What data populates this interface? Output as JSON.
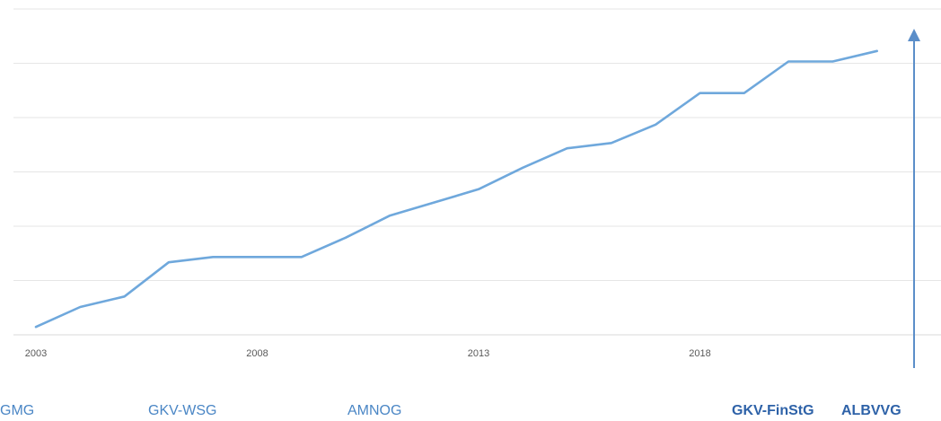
{
  "chart_data": {
    "type": "line",
    "title": "",
    "xlabel": "",
    "ylabel": "",
    "x": [
      2003,
      2004,
      2005,
      2006,
      2007,
      2008,
      2009,
      2010,
      2011,
      2012,
      2013,
      2014,
      2015,
      2016,
      2017,
      2018,
      2019,
      2020,
      2021,
      2022
    ],
    "series": [
      {
        "values": [
          0.15,
          0.53,
          0.73,
          1.38,
          1.48,
          1.48,
          1.48,
          1.85,
          2.27,
          2.52,
          2.77,
          3.18,
          3.55,
          3.65,
          4.0,
          4.6,
          4.6,
          5.2,
          5.2,
          5.4
        ],
        "color": "#6fa8dc"
      }
    ],
    "xticks": [
      "2003",
      "2008",
      "2013",
      "2018"
    ],
    "ylim": [
      0,
      6.2
    ],
    "grid": "horizontal",
    "arrow_color": "#5b8ec9"
  },
  "laws": [
    {
      "label": "GMG",
      "bold": false
    },
    {
      "label": "GKV-WSG",
      "bold": false
    },
    {
      "label": "AMNOG",
      "bold": false
    },
    {
      "label": "GKV-FinStG",
      "bold": true
    },
    {
      "label": "ALBVVG",
      "bold": true
    }
  ]
}
